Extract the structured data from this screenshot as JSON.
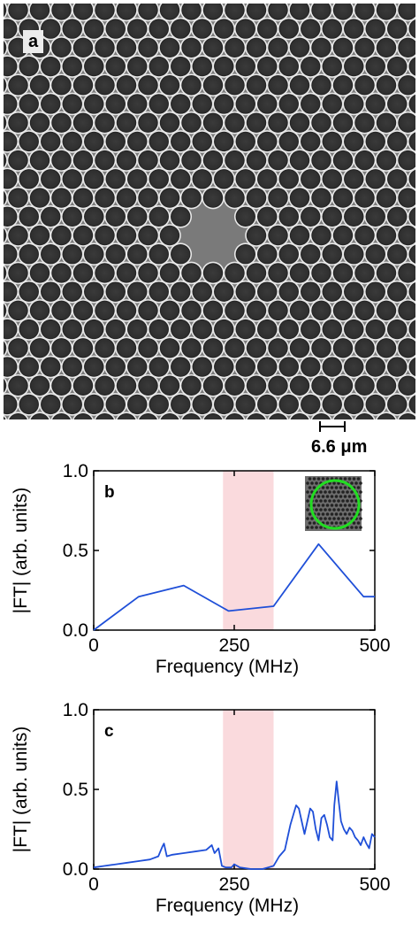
{
  "panel_a": {
    "label": "a",
    "scale_bar": "6.6 μm"
  },
  "chart_data": [
    {
      "type": "line",
      "panel_label": "b",
      "xlabel": "Frequency (MHz)",
      "ylabel": "|FT| (arb. units)",
      "xlim": [
        0,
        500
      ],
      "ylim": [
        0,
        1.0
      ],
      "x_ticks": [
        "0",
        "250",
        "500"
      ],
      "y_ticks": [
        "0.0",
        "0.5",
        "1.0"
      ],
      "highlight_band": {
        "x_from": 230,
        "x_to": 320,
        "color": "#fadadd"
      },
      "line_color": "#1f4fd8",
      "has_inset": true,
      "series": [
        {
          "x": [
            0,
            80,
            160,
            240,
            320,
            400,
            480,
            500
          ],
          "y": [
            0.0,
            0.21,
            0.28,
            0.12,
            0.15,
            0.54,
            0.21,
            0.21
          ]
        }
      ]
    },
    {
      "type": "line",
      "panel_label": "c",
      "xlabel": "Frequency (MHz)",
      "ylabel": "|FT| (arb. units)",
      "xlim": [
        0,
        500
      ],
      "ylim": [
        0,
        1.0
      ],
      "x_ticks": [
        "0",
        "250",
        "500"
      ],
      "y_ticks": [
        "0.0",
        "0.5",
        "1.0"
      ],
      "highlight_band": {
        "x_from": 230,
        "x_to": 320,
        "color": "#fadadd"
      },
      "line_color": "#1f4fd8",
      "has_inset": false,
      "series": [
        {
          "x": [
            0,
            20,
            40,
            60,
            80,
            100,
            115,
            122,
            125,
            130,
            140,
            160,
            180,
            200,
            210,
            215,
            222,
            228,
            235,
            245,
            250,
            260,
            280,
            300,
            310,
            320,
            330,
            340,
            345,
            350,
            355,
            360,
            365,
            370,
            375,
            380,
            385,
            390,
            395,
            400,
            405,
            410,
            415,
            420,
            425,
            428,
            432,
            436,
            440,
            445,
            450,
            455,
            460,
            465,
            470,
            475,
            480,
            485,
            490,
            495,
            500
          ],
          "y": [
            0.01,
            0.02,
            0.03,
            0.04,
            0.05,
            0.06,
            0.08,
            0.14,
            0.16,
            0.08,
            0.09,
            0.1,
            0.11,
            0.12,
            0.15,
            0.1,
            0.13,
            0.02,
            0.01,
            0.01,
            0.03,
            0.01,
            0.0,
            0.0,
            0.01,
            0.02,
            0.08,
            0.12,
            0.2,
            0.28,
            0.34,
            0.4,
            0.38,
            0.3,
            0.22,
            0.3,
            0.38,
            0.36,
            0.25,
            0.18,
            0.32,
            0.34,
            0.28,
            0.2,
            0.18,
            0.4,
            0.55,
            0.42,
            0.3,
            0.25,
            0.22,
            0.26,
            0.24,
            0.2,
            0.18,
            0.15,
            0.2,
            0.16,
            0.13,
            0.22,
            0.2
          ]
        }
      ]
    }
  ]
}
